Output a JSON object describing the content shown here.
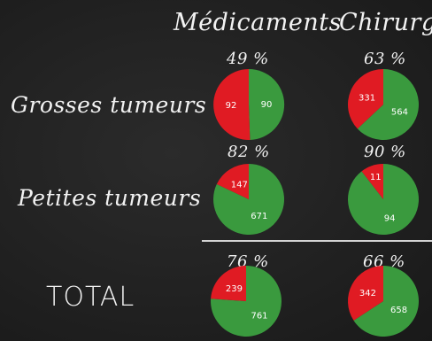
{
  "columns": [
    "Médicaments",
    "Chirurgie"
  ],
  "rows": [
    {
      "label": "Grosses tumeurs",
      "cells": [
        {
          "percent": "49 %",
          "red": 92,
          "green": 90
        },
        {
          "percent": "63 %",
          "red": 331,
          "green": 564
        }
      ]
    },
    {
      "label": "Petites tumeurs",
      "cells": [
        {
          "percent": "82 %",
          "red": 147,
          "green": 671
        },
        {
          "percent": "90 %",
          "red": 11,
          "green": 94
        }
      ]
    },
    {
      "label": "TOTAL",
      "cells": [
        {
          "percent": "76 %",
          "red": 239,
          "green": 761
        },
        {
          "percent": "66 %",
          "red": 342,
          "green": 658
        }
      ]
    }
  ],
  "colors": {
    "red": "#e01b23",
    "green": "#3a9a3e",
    "background": "#232323",
    "chalk": "#f2f2f2"
  }
}
